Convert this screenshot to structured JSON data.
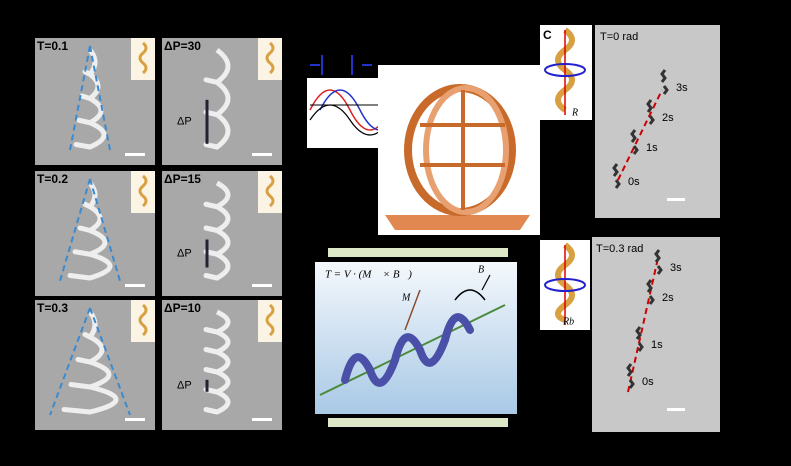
{
  "sem_taper": [
    {
      "label": "T=0.1"
    },
    {
      "label": "T=0.2"
    },
    {
      "label": "T=0.3"
    }
  ],
  "sem_pitch": [
    {
      "label": "ΔP=30",
      "marker": "ΔP"
    },
    {
      "label": "ΔP=15",
      "marker": "ΔP"
    },
    {
      "label": "ΔP=10",
      "marker": "ΔP"
    }
  ],
  "torque": {
    "equation": "T = V · (M⃗ × B⃗)",
    "moment": "M⃗",
    "field": "B⃗"
  },
  "tracking": {
    "panel_letter": "C",
    "top": {
      "label": "T=0 rad",
      "radius": "R",
      "times": [
        "3s",
        "2s",
        "1s",
        "0s"
      ]
    },
    "bottom": {
      "label": "T=0.3 rad",
      "radius": "Rb",
      "times": [
        "3s",
        "2s",
        "1s",
        "0s"
      ]
    }
  }
}
